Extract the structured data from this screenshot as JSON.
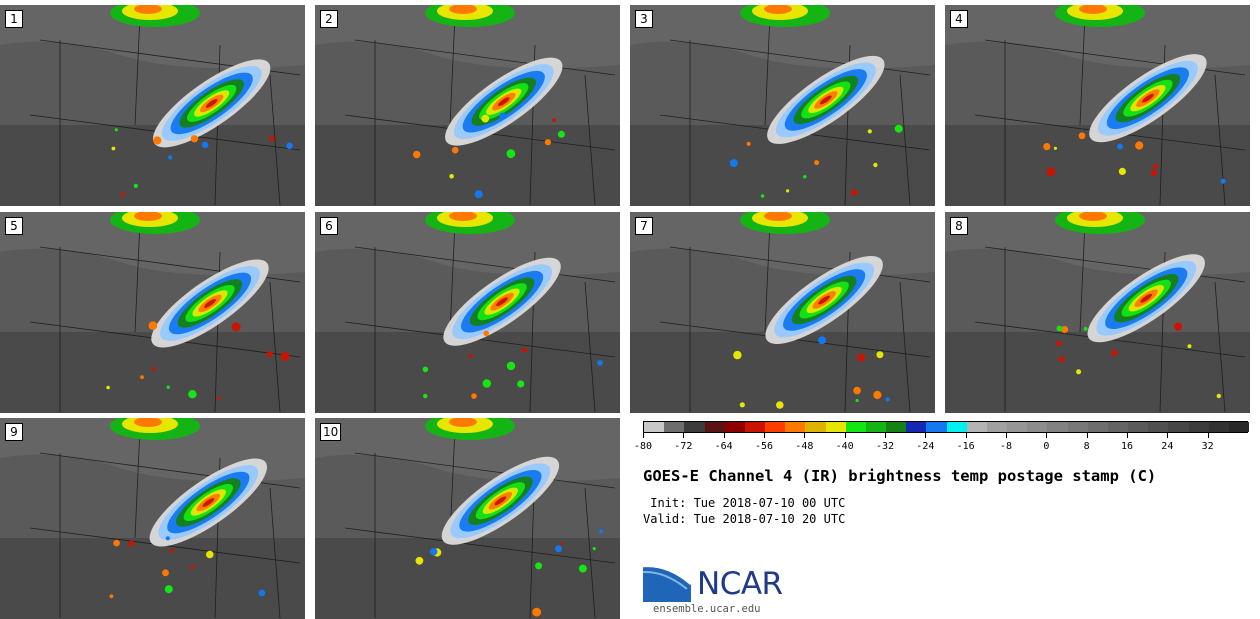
{
  "panels": [
    "1",
    "2",
    "3",
    "4",
    "5",
    "6",
    "7",
    "8",
    "9",
    "10"
  ],
  "colorbar": {
    "colors": [
      "#c8c8c8",
      "#6e6e6e",
      "#3c3c3c",
      "#5a1414",
      "#8c0000",
      "#c81400",
      "#ff3c00",
      "#ff7800",
      "#dcb400",
      "#e6e600",
      "#14e614",
      "#14b414",
      "#148214",
      "#1428b4",
      "#1478f0",
      "#00f0f0",
      "#b4b4b4",
      "#a0a0a0",
      "#969696",
      "#8c8c8c",
      "#828282",
      "#787878",
      "#6e6e6e",
      "#646464",
      "#5a5a5a",
      "#505050",
      "#464646",
      "#3c3c3c",
      "#323232",
      "#282828"
    ],
    "tick_labels": [
      "-80",
      "-72",
      "-64",
      "-56",
      "-48",
      "-40",
      "-32",
      "-24",
      "-16",
      "-8",
      "0",
      "8",
      "16",
      "24",
      "32"
    ]
  },
  "title": "GOES-E Channel 4 (IR) brightness temp postage stamp (C)",
  "init": " Init: Tue 2018-07-10 00 UTC",
  "valid": "Valid: Tue 2018-07-10 20 UTC",
  "logo_text": "NCAR",
  "url": "ensemble.ucar.edu"
}
